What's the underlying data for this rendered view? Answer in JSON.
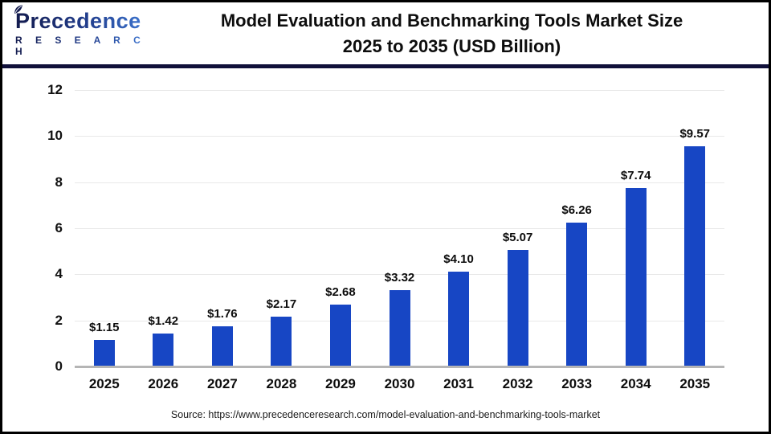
{
  "header": {
    "logo": {
      "name": "Precedence",
      "subtitle": "R E S E A R C H"
    },
    "title_line1": "Model Evaluation and Benchmarking Tools Market Size",
    "title_line2": "2025 to 2035 (USD Billion)"
  },
  "chart_data": {
    "type": "bar",
    "title": "Model Evaluation and Benchmarking Tools Market Size 2025 to 2035 (USD Billion)",
    "categories": [
      "2025",
      "2026",
      "2027",
      "2028",
      "2029",
      "2030",
      "2031",
      "2032",
      "2033",
      "2034",
      "2035"
    ],
    "values": [
      1.15,
      1.42,
      1.76,
      2.17,
      2.68,
      3.32,
      4.1,
      5.07,
      6.26,
      7.74,
      9.57
    ],
    "value_labels": [
      "$1.15",
      "$1.42",
      "$1.76",
      "$2.17",
      "$2.68",
      "$3.32",
      "$4.10",
      "$5.07",
      "$6.26",
      "$7.74",
      "$9.57"
    ],
    "xlabel": "",
    "ylabel": "",
    "ylim": [
      0,
      12
    ],
    "yticks": [
      0,
      2,
      4,
      6,
      8,
      10,
      12
    ],
    "grid": true,
    "legend": "none",
    "bar_color": "#1746c4"
  },
  "footer": {
    "source": "Source: https://www.precedenceresearch.com/model-evaluation-and-benchmarking-tools-market"
  },
  "colors": {
    "bar": "#1746c4",
    "divider": "#10103a",
    "axis_line": "#b5b5b5",
    "gridline": "#e8e8e8",
    "logo_dark": "#131b4e",
    "logo_light": "#3f7ad6",
    "title_text": "#0d0d0d"
  }
}
